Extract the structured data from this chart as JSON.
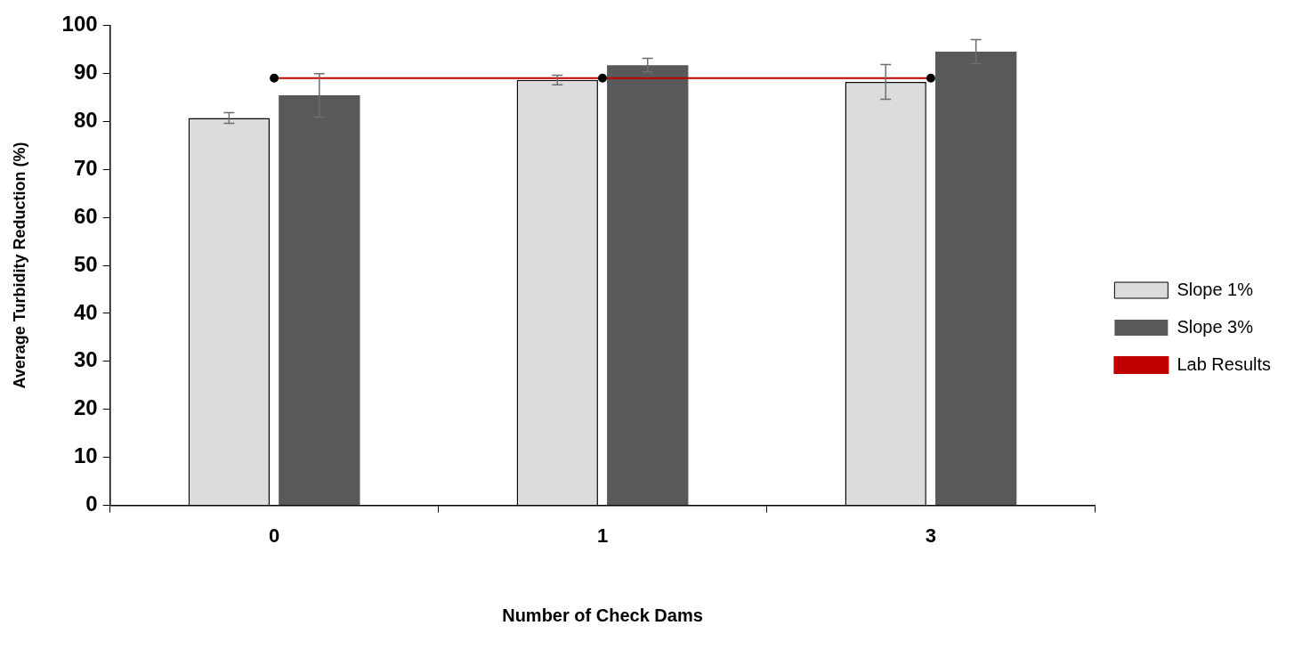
{
  "chart_data": {
    "type": "bar",
    "xlabel": "Number of Check Dams",
    "ylabel": "Average Turbidity Reduction (%)",
    "categories": [
      "0",
      "1",
      "3"
    ],
    "series": [
      {
        "name": "Slope 1%",
        "color": "#dcdcdc",
        "values": [
          80.7,
          88.6,
          88.2
        ],
        "errors": [
          1.1,
          1.0,
          3.6
        ]
      },
      {
        "name": "Slope 3%",
        "color": "#595959",
        "values": [
          85.4,
          91.7,
          94.5
        ],
        "errors": [
          4.5,
          1.4,
          2.5
        ]
      },
      {
        "name": "Lab Results",
        "type": "line",
        "color": "#c00000",
        "values": [
          89.0,
          89.0,
          89.0
        ],
        "marker": "circle"
      }
    ],
    "ylim": [
      0,
      100
    ],
    "yticks": [
      0,
      10,
      20,
      30,
      40,
      50,
      60,
      70,
      80,
      90,
      100
    ],
    "grid": false,
    "legend": "right"
  }
}
